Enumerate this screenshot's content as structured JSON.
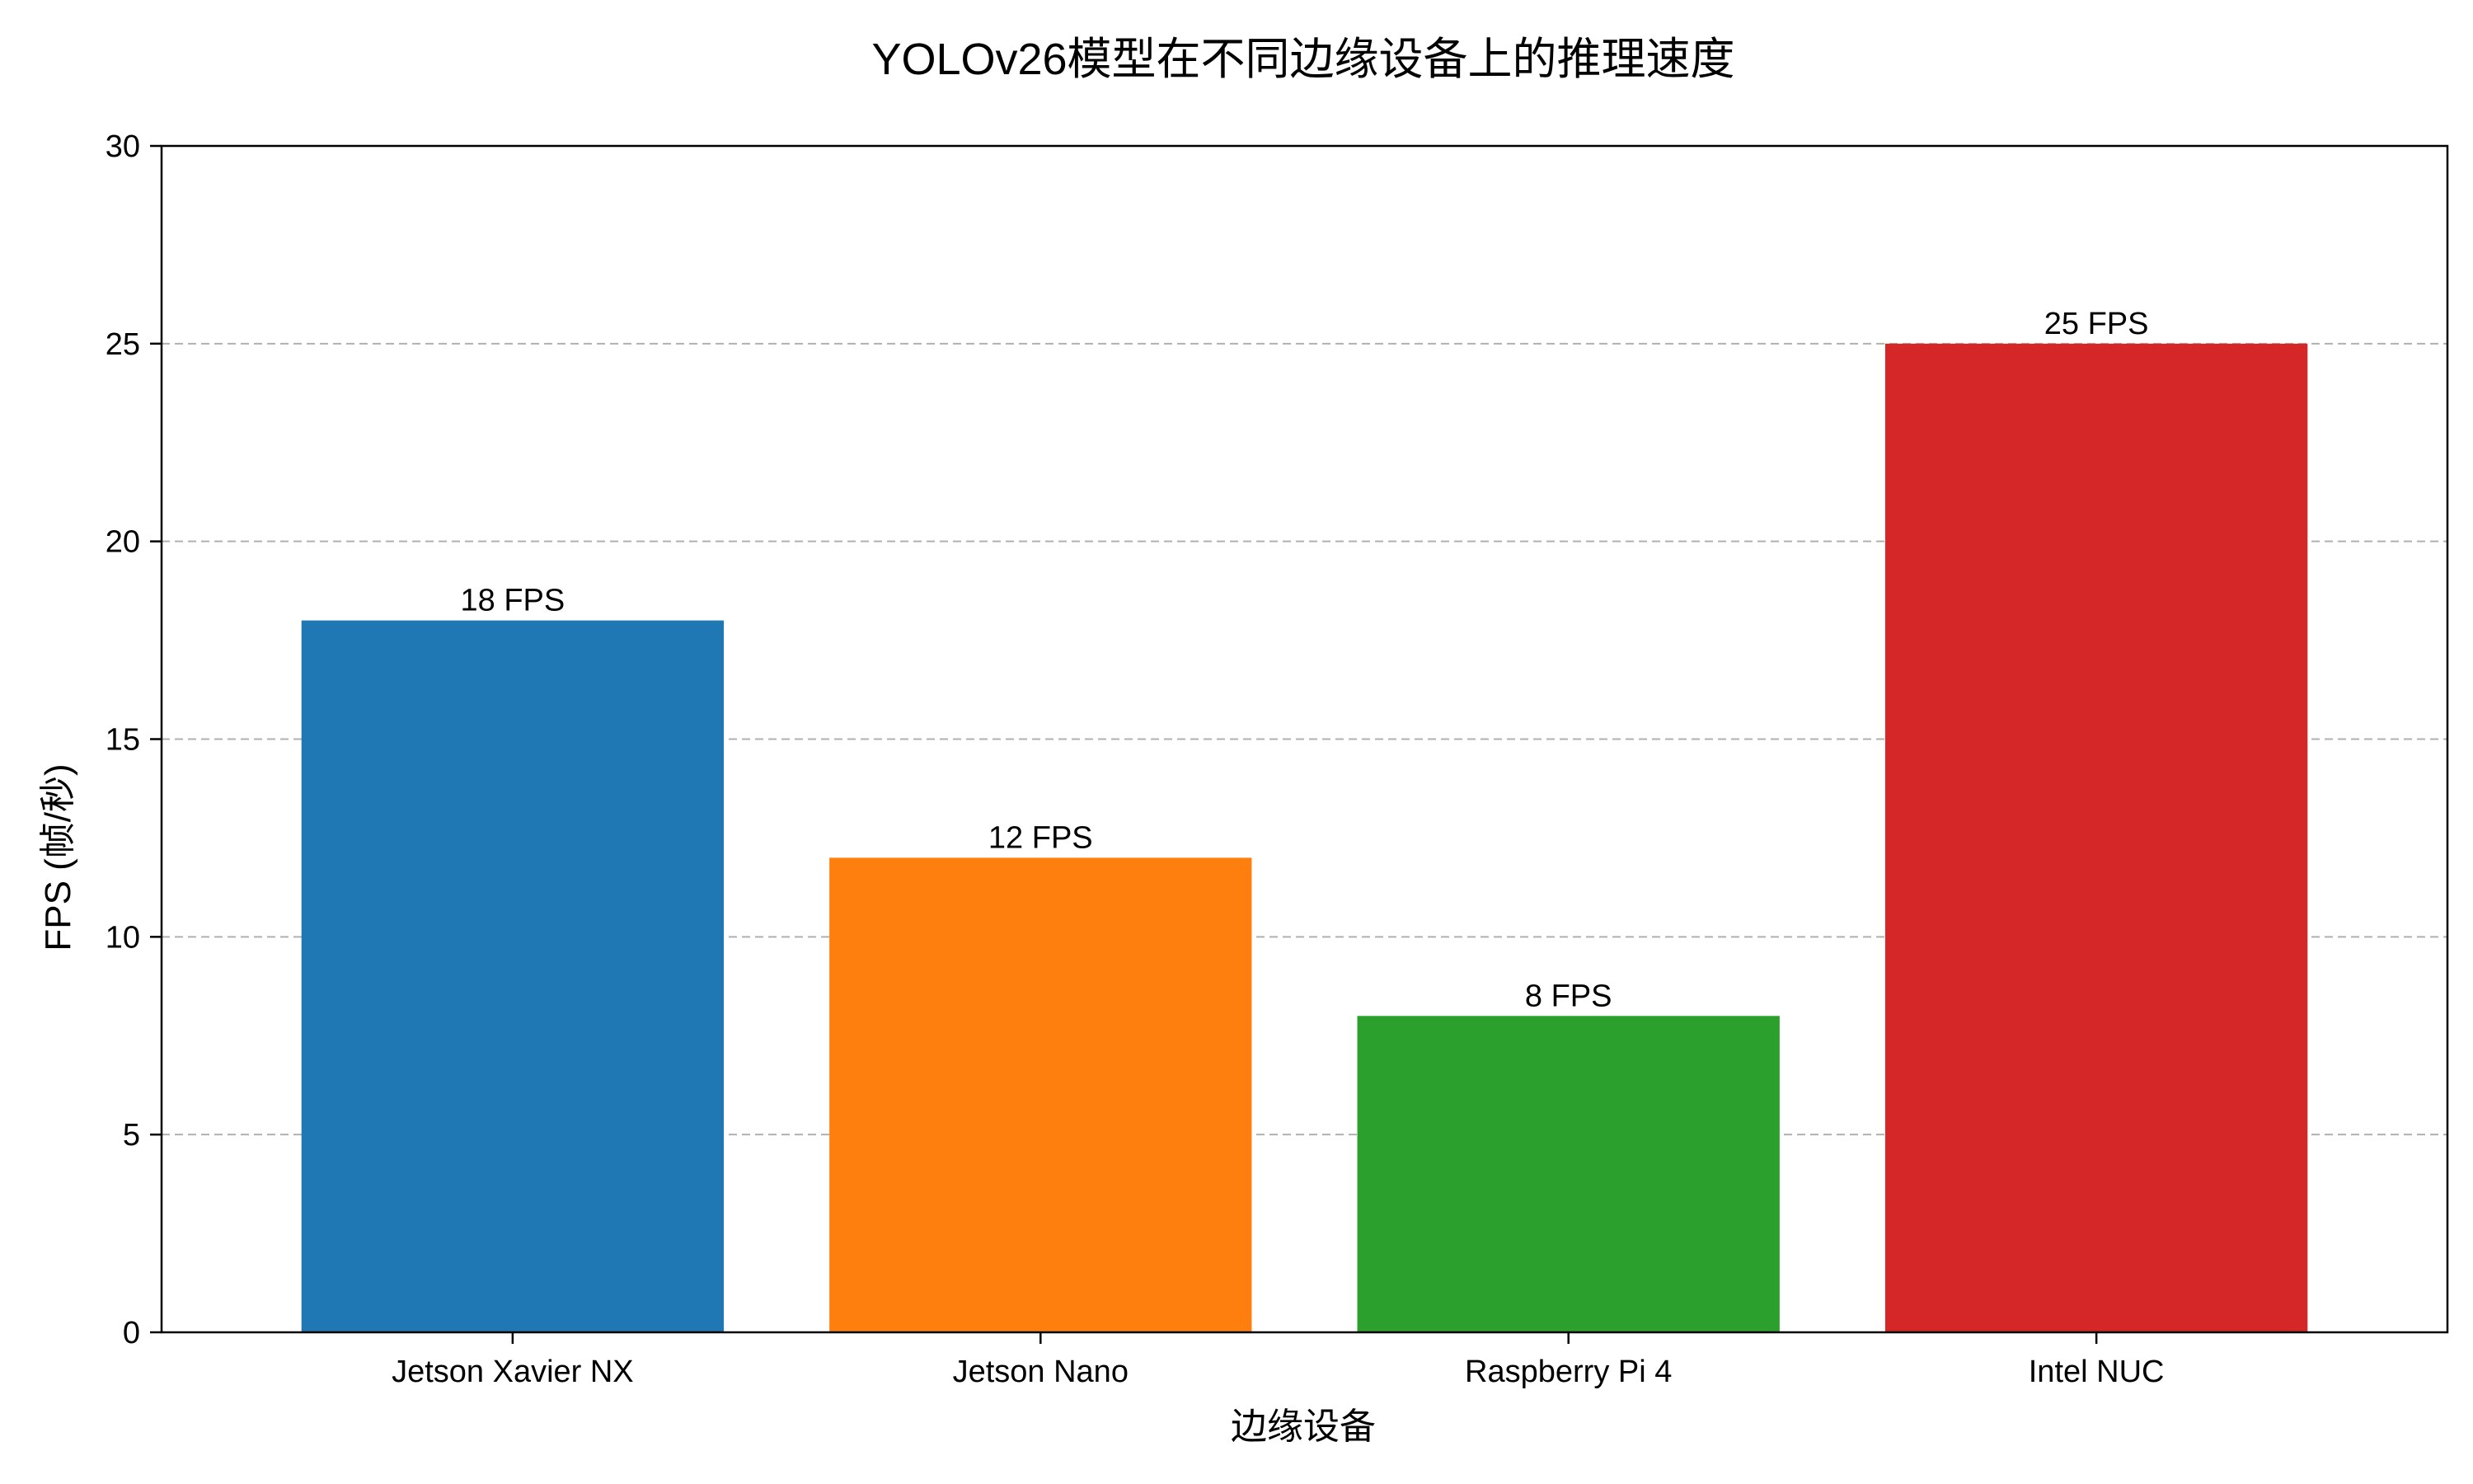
{
  "chart_data": {
    "type": "bar",
    "title": "YOLOv26模型在不同边缘设备上的推理速度",
    "xlabel": "边缘设备",
    "ylabel": "FPS (帧/秒)",
    "categories": [
      "Jetson Xavier NX",
      "Jetson Nano",
      "Raspberry Pi 4",
      "Intel NUC"
    ],
    "values": [
      18,
      12,
      8,
      25
    ],
    "data_labels": [
      "18 FPS",
      "12 FPS",
      "8 FPS",
      "25 FPS"
    ],
    "colors": [
      "#1f77b4",
      "#ff7f0e",
      "#2ca02c",
      "#d62728"
    ],
    "ylim": [
      0,
      30
    ],
    "yticks": [
      0,
      5,
      10,
      15,
      20,
      25,
      30
    ],
    "grid": "y-dashed",
    "legend": "none"
  }
}
